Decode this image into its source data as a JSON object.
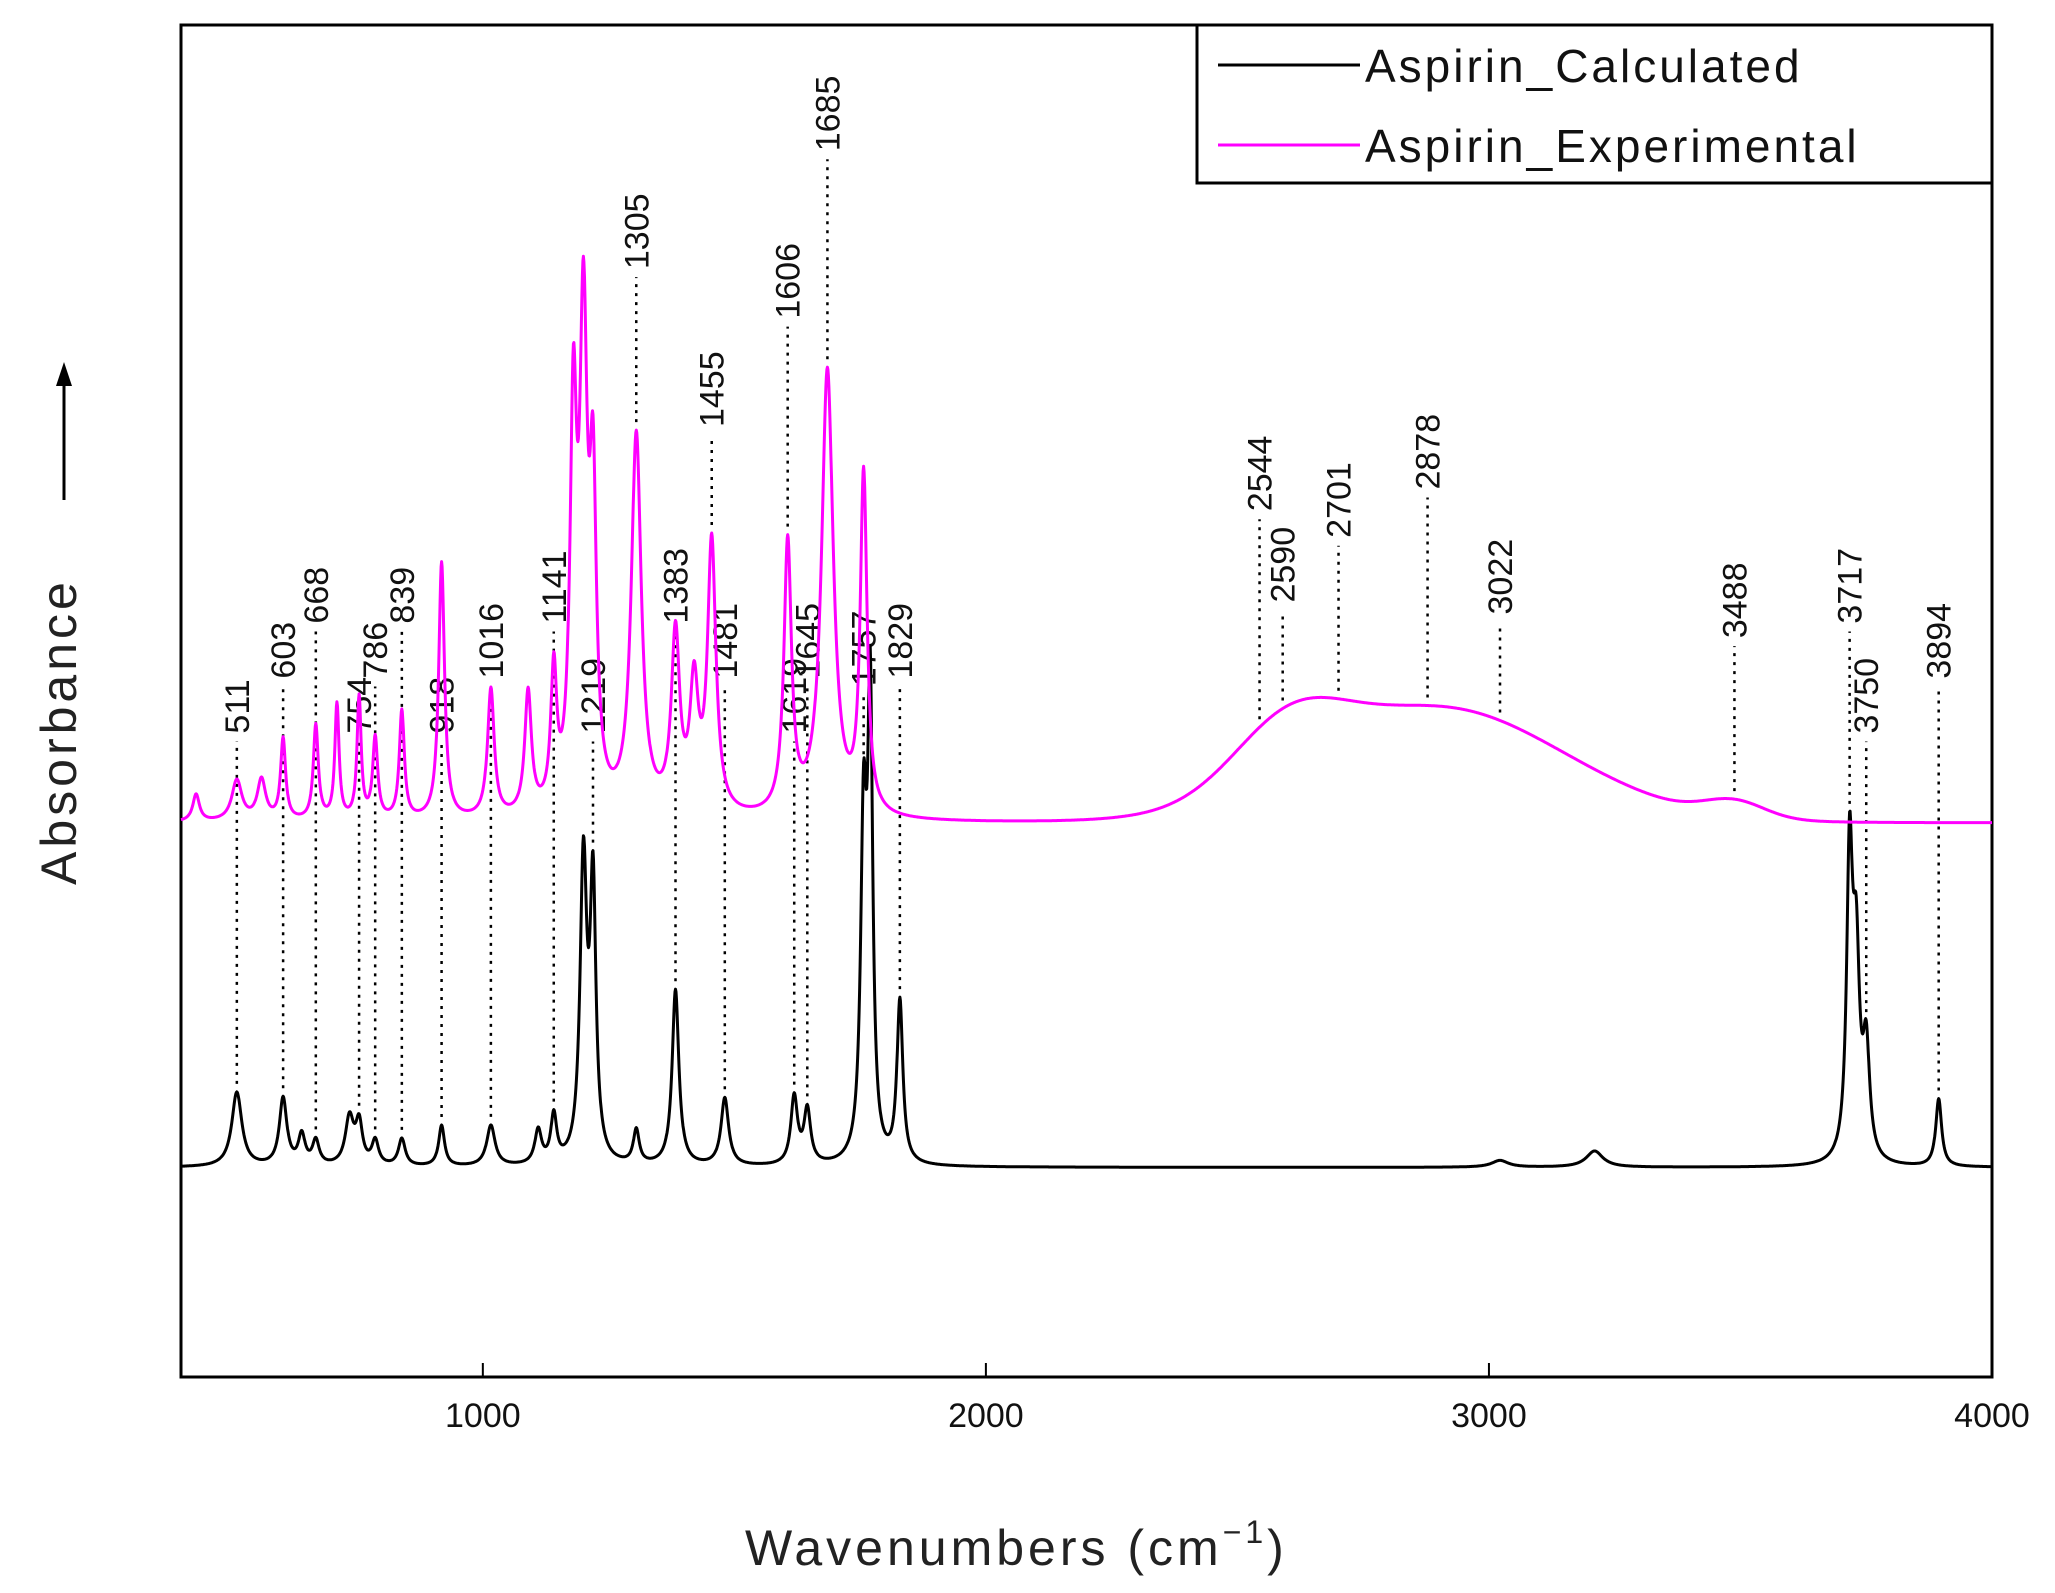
{
  "chart_data": {
    "type": "line",
    "title": "",
    "xlabel": "Wavenumbers (cm",
    "xlabel_sup": "−1",
    "xlabel_close": ")",
    "ylabel": "Absorbance",
    "xlim": [
      400,
      4000
    ],
    "ylim": [
      0,
      1
    ],
    "x_ticks": [
      1000,
      2000,
      3000,
      4000
    ],
    "x_tick_labels": [
      "1000",
      "2000",
      "3000",
      "4000"
    ],
    "grid": false,
    "legend_position": "top-right",
    "colors": {
      "calculated": "#000000",
      "experimental": "#ff00ff",
      "axis": "#000000"
    },
    "series": [
      {
        "name": "Aspirin_Calculated",
        "color": "#000000",
        "baseline": 0.155,
        "peaks": [
          [
            511,
            0.055,
            12
          ],
          [
            603,
            0.05,
            9
          ],
          [
            640,
            0.022,
            8
          ],
          [
            668,
            0.018,
            8
          ],
          [
            735,
            0.035,
            10
          ],
          [
            754,
            0.03,
            8
          ],
          [
            786,
            0.018,
            8
          ],
          [
            839,
            0.02,
            8
          ],
          [
            918,
            0.03,
            7
          ],
          [
            1016,
            0.03,
            10
          ],
          [
            1110,
            0.025,
            8
          ],
          [
            1141,
            0.035,
            7
          ],
          [
            1200,
            0.22,
            8
          ],
          [
            1219,
            0.2,
            7
          ],
          [
            1305,
            0.025,
            7
          ],
          [
            1383,
            0.13,
            8
          ],
          [
            1481,
            0.05,
            9
          ],
          [
            1619,
            0.05,
            8
          ],
          [
            1645,
            0.04,
            8
          ],
          [
            1757,
            0.24,
            7
          ],
          [
            1770,
            0.33,
            6
          ],
          [
            1829,
            0.12,
            7
          ],
          [
            3022,
            0.005,
            20
          ],
          [
            3210,
            0.012,
            20
          ],
          [
            3717,
            0.22,
            7
          ],
          [
            3730,
            0.14,
            8
          ],
          [
            3750,
            0.08,
            8
          ],
          [
            3894,
            0.05,
            7
          ]
        ]
      },
      {
        "name": "Aspirin_Experimental",
        "color": "#ff00ff",
        "baseline": 0.41,
        "broad": [
          [
            2600,
            0.045,
            110
          ],
          [
            2900,
            0.085,
            250
          ],
          [
            3488,
            0.012,
            60
          ]
        ],
        "peaks": [
          [
            430,
            0.02,
            8
          ],
          [
            511,
            0.03,
            12
          ],
          [
            560,
            0.03,
            10
          ],
          [
            603,
            0.06,
            6
          ],
          [
            668,
            0.07,
            6
          ],
          [
            710,
            0.085,
            5
          ],
          [
            754,
            0.09,
            5
          ],
          [
            786,
            0.06,
            6
          ],
          [
            839,
            0.08,
            6
          ],
          [
            918,
            0.19,
            7
          ],
          [
            1016,
            0.095,
            8
          ],
          [
            1090,
            0.09,
            8
          ],
          [
            1141,
            0.1,
            7
          ],
          [
            1180,
            0.28,
            8
          ],
          [
            1200,
            0.34,
            9
          ],
          [
            1219,
            0.22,
            8
          ],
          [
            1305,
            0.28,
            12
          ],
          [
            1383,
            0.13,
            10
          ],
          [
            1420,
            0.09,
            10
          ],
          [
            1455,
            0.2,
            10
          ],
          [
            1606,
            0.2,
            9
          ],
          [
            1685,
            0.33,
            14
          ],
          [
            1757,
            0.25,
            8
          ]
        ]
      }
    ],
    "annotations": [
      {
        "label": "511",
        "x": 511,
        "series": "calc"
      },
      {
        "label": "603",
        "x": 603,
        "series": "calc"
      },
      {
        "label": "668",
        "x": 668,
        "series": "calc"
      },
      {
        "label": "754",
        "x": 754,
        "series": "calc"
      },
      {
        "label": "786",
        "x": 786,
        "series": "calc"
      },
      {
        "label": "839",
        "x": 839,
        "series": "calc"
      },
      {
        "label": "918",
        "x": 918,
        "series": "calc"
      },
      {
        "label": "1016",
        "x": 1016,
        "series": "calc"
      },
      {
        "label": "1141",
        "x": 1141,
        "series": "calc"
      },
      {
        "label": "1219",
        "x": 1219,
        "series": "calc"
      },
      {
        "label": "1305",
        "x": 1305,
        "series": "exp"
      },
      {
        "label": "1383",
        "x": 1383,
        "series": "calc"
      },
      {
        "label": "1455",
        "x": 1455,
        "series": "exp"
      },
      {
        "label": "1481",
        "x": 1481,
        "series": "calc"
      },
      {
        "label": "1606",
        "x": 1606,
        "series": "exp"
      },
      {
        "label": "1619",
        "x": 1619,
        "series": "calc"
      },
      {
        "label": "1645",
        "x": 1645,
        "series": "calc"
      },
      {
        "label": "1685",
        "x": 1685,
        "series": "exp"
      },
      {
        "label": "1757",
        "x": 1757,
        "series": "calc"
      },
      {
        "label": "1829",
        "x": 1829,
        "series": "calc"
      },
      {
        "label": "2544",
        "x": 2544,
        "series": "exp"
      },
      {
        "label": "2590",
        "x": 2590,
        "series": "exp"
      },
      {
        "label": "2701",
        "x": 2701,
        "series": "exp"
      },
      {
        "label": "2878",
        "x": 2878,
        "series": "exp"
      },
      {
        "label": "3022",
        "x": 3022,
        "series": "exp"
      },
      {
        "label": "3488",
        "x": 3488,
        "series": "exp"
      },
      {
        "label": "3717",
        "x": 3717,
        "series": "calc"
      },
      {
        "label": "3750",
        "x": 3750,
        "series": "calc"
      },
      {
        "label": "3894",
        "x": 3894,
        "series": "calc"
      }
    ]
  }
}
